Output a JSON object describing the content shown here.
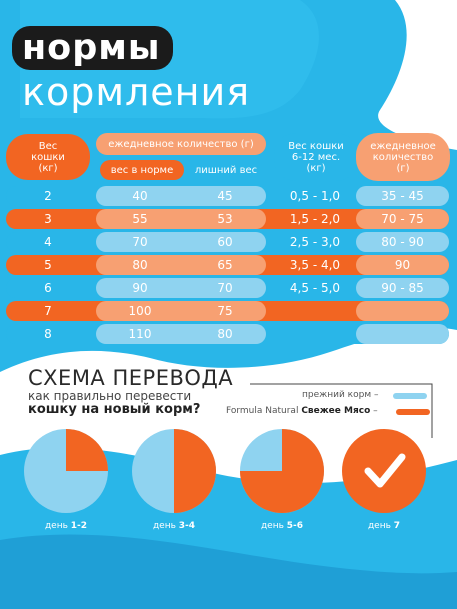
{
  "header": {
    "title": "нормы",
    "subtitle": "кормления"
  },
  "table1": {
    "weight_header": [
      "Вес",
      "кошки",
      "(кг)"
    ],
    "daily_header": "ежедневное количество (г)",
    "normal_header": "вес в норме",
    "over_header": "лишний вес",
    "rows": [
      {
        "kg": "2",
        "normal": "40",
        "over": "45"
      },
      {
        "kg": "3",
        "normal": "55",
        "over": "53"
      },
      {
        "kg": "4",
        "normal": "70",
        "over": "60"
      },
      {
        "kg": "5",
        "normal": "80",
        "over": "65"
      },
      {
        "kg": "6",
        "normal": "90",
        "over": "70"
      },
      {
        "kg": "7",
        "normal": "100",
        "over": "75"
      },
      {
        "kg": "8",
        "normal": "110",
        "over": "80"
      }
    ]
  },
  "table2": {
    "weight_header": [
      "Вес кошки",
      "6-12 мес.",
      "(кг)"
    ],
    "daily_header": [
      "ежедневное",
      "количество",
      "(г)"
    ],
    "rows": [
      {
        "kg": "0,5 - 1,0",
        "grams": "35 - 45"
      },
      {
        "kg": "1,5 - 2,0",
        "grams": "70 - 75"
      },
      {
        "kg": "2,5 - 3,0",
        "grams": "80 - 90"
      },
      {
        "kg": "3,5 - 4,0",
        "grams": "90"
      },
      {
        "kg": "4,5 - 5,0",
        "grams": "90 - 85"
      }
    ]
  },
  "transition": {
    "title": "СХЕМА ПЕРЕВОДА",
    "question_line1": "как правильно перевести",
    "question_line2": "кошку на новый корм?",
    "legend_old": "прежний корм –",
    "legend_new_prefix": "Formula Natural ",
    "legend_new_bold": "Свежее Мясо",
    "legend_new_suffix": " –",
    "days": [
      {
        "prefix": "день ",
        "label": "1-2",
        "new_fraction": 0.25
      },
      {
        "prefix": "день ",
        "label": "3-4",
        "new_fraction": 0.5
      },
      {
        "prefix": "день ",
        "label": "5-6",
        "new_fraction": 0.75
      },
      {
        "prefix": "день ",
        "label": "7",
        "new_fraction": 1.0
      }
    ]
  },
  "colors": {
    "blue": "#29b6e8",
    "light_blue": "#8fd3f0",
    "orange": "#f26522",
    "peach": "#f7a072",
    "dark": "#1b1b1b"
  }
}
